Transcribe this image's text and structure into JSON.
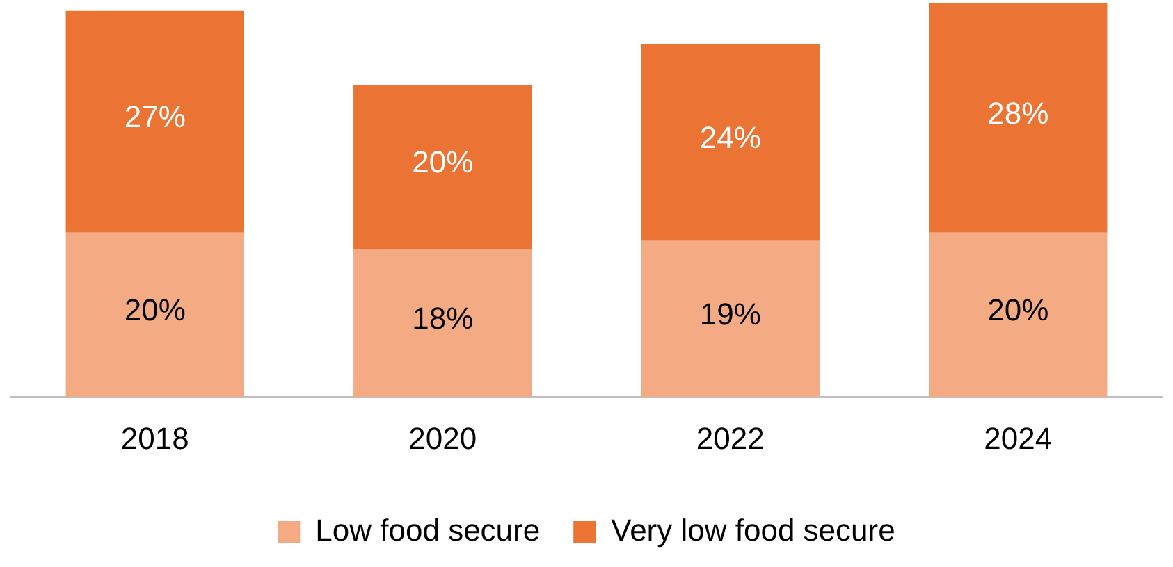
{
  "chart_data": {
    "type": "bar",
    "stacked": true,
    "categories": [
      "2018",
      "2020",
      "2022",
      "2024"
    ],
    "series": [
      {
        "name": "Low food secure",
        "color": "#f4ab84",
        "values": [
          20,
          18,
          19,
          20
        ],
        "value_labels": [
          "20%",
          "18%",
          "19%",
          "20%"
        ]
      },
      {
        "name": "Very low food secure",
        "color": "#eb7434",
        "values": [
          27,
          20,
          24,
          28
        ],
        "value_labels": [
          "27%",
          "20%",
          "24%",
          "28%"
        ]
      }
    ],
    "legend": "bottom",
    "grid": false
  }
}
